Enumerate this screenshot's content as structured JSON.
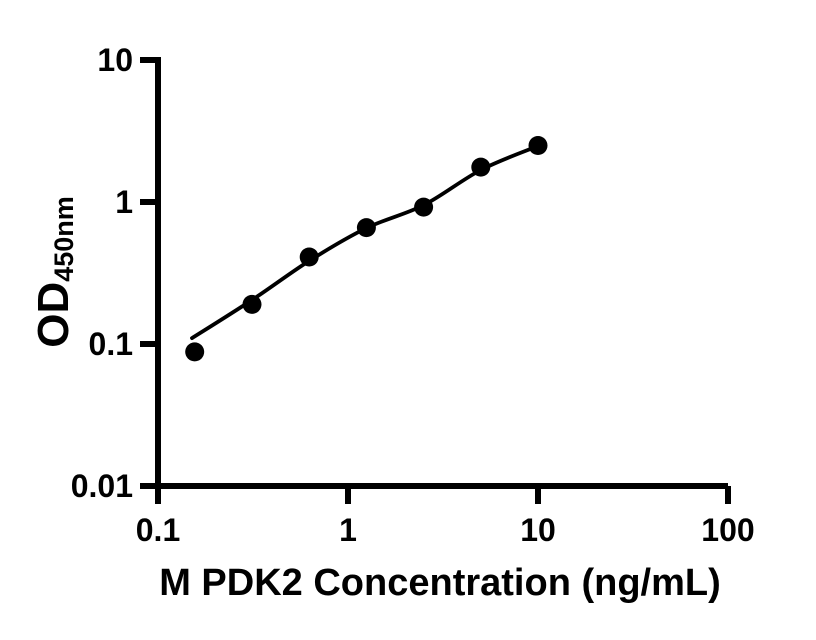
{
  "colors": {
    "ink": "#000000",
    "background": "#ffffff"
  },
  "chart_data": {
    "type": "scatter",
    "title": "",
    "grid": false,
    "legend": false,
    "x_axis": {
      "label": "M PDK2 Concentration (ng/mL)",
      "scale": "log",
      "range": [
        0.1,
        100
      ],
      "ticks": [
        {
          "value": 0.1,
          "label": "0.1"
        },
        {
          "value": 1,
          "label": "1"
        },
        {
          "value": 10,
          "label": "10"
        },
        {
          "value": 100,
          "label": "100"
        }
      ]
    },
    "y_axis": {
      "label_main": "OD",
      "label_subscript": "450nm",
      "scale": "log",
      "range": [
        0.01,
        10
      ],
      "ticks": [
        {
          "value": 10,
          "label": "10"
        },
        {
          "value": 1,
          "label": "1"
        },
        {
          "value": 0.1,
          "label": "0.1"
        },
        {
          "value": 0.01,
          "label": "0.01"
        }
      ]
    },
    "series": [
      {
        "name": "M PDK2 standard",
        "marker": "filled-circle",
        "color": "#000000",
        "points": [
          {
            "x": 0.156,
            "y": 0.088
          },
          {
            "x": 0.3125,
            "y": 0.19
          },
          {
            "x": 0.625,
            "y": 0.41
          },
          {
            "x": 1.25,
            "y": 0.66
          },
          {
            "x": 2.5,
            "y": 0.92
          },
          {
            "x": 5,
            "y": 1.76
          },
          {
            "x": 10,
            "y": 2.5
          }
        ]
      }
    ],
    "fit_curve": {
      "name": "fitted standard curve",
      "color": "#000000",
      "points": [
        {
          "x": 0.151,
          "y": 0.11
        },
        {
          "x": 0.3125,
          "y": 0.204
        },
        {
          "x": 0.625,
          "y": 0.385
        },
        {
          "x": 1.25,
          "y": 0.655
        },
        {
          "x": 2.5,
          "y": 0.95
        },
        {
          "x": 5,
          "y": 1.68
        },
        {
          "x": 10,
          "y": 2.48
        }
      ]
    }
  }
}
